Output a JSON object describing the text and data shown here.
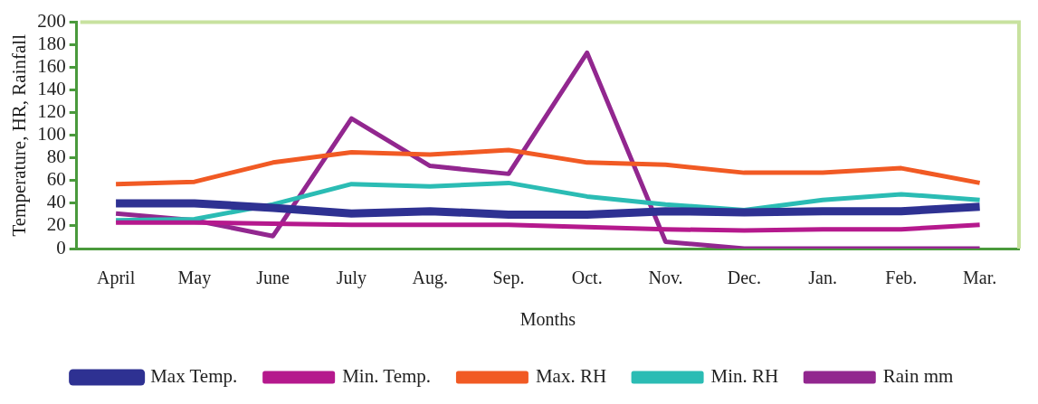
{
  "chart_data": {
    "type": "line",
    "xlabel": "Months",
    "ylabel": "Temperature, HR, Rainfall",
    "categories": [
      "April",
      "May",
      "June",
      "July",
      "Aug.",
      "Sep.",
      "Oct.",
      "Nov.",
      "Dec.",
      "Jan.",
      "Feb.",
      "Mar."
    ],
    "series": [
      {
        "name": "Max Temp.",
        "color": "#2e3192",
        "values": [
          40,
          40,
          36,
          31,
          33,
          30,
          30,
          33,
          32,
          33,
          33,
          37
        ]
      },
      {
        "name": "Min. Temp.",
        "color": "#b5198d",
        "values": [
          23,
          23,
          22,
          21,
          21,
          21,
          19,
          17,
          16,
          17,
          17,
          21
        ]
      },
      {
        "name": "Max. RH",
        "color": "#f15a24",
        "values": [
          57,
          59,
          76,
          85,
          83,
          87,
          76,
          74,
          67,
          67,
          71,
          58
        ]
      },
      {
        "name": "Min. RH",
        "color": "#2bbcb4",
        "values": [
          25,
          26,
          39,
          57,
          55,
          58,
          46,
          39,
          34,
          43,
          48,
          43
        ]
      },
      {
        "name": "Rain mm",
        "color": "#92278f",
        "values": [
          31,
          25,
          11,
          115,
          73,
          66,
          173,
          6,
          0,
          0,
          0,
          0
        ]
      }
    ],
    "ylim": [
      0,
      200
    ],
    "yticks": [
      0,
      20,
      40,
      60,
      80,
      100,
      120,
      140,
      160,
      180,
      200
    ],
    "grid": false,
    "legend": "bottom",
    "marker": "none",
    "line_style": "solid"
  }
}
